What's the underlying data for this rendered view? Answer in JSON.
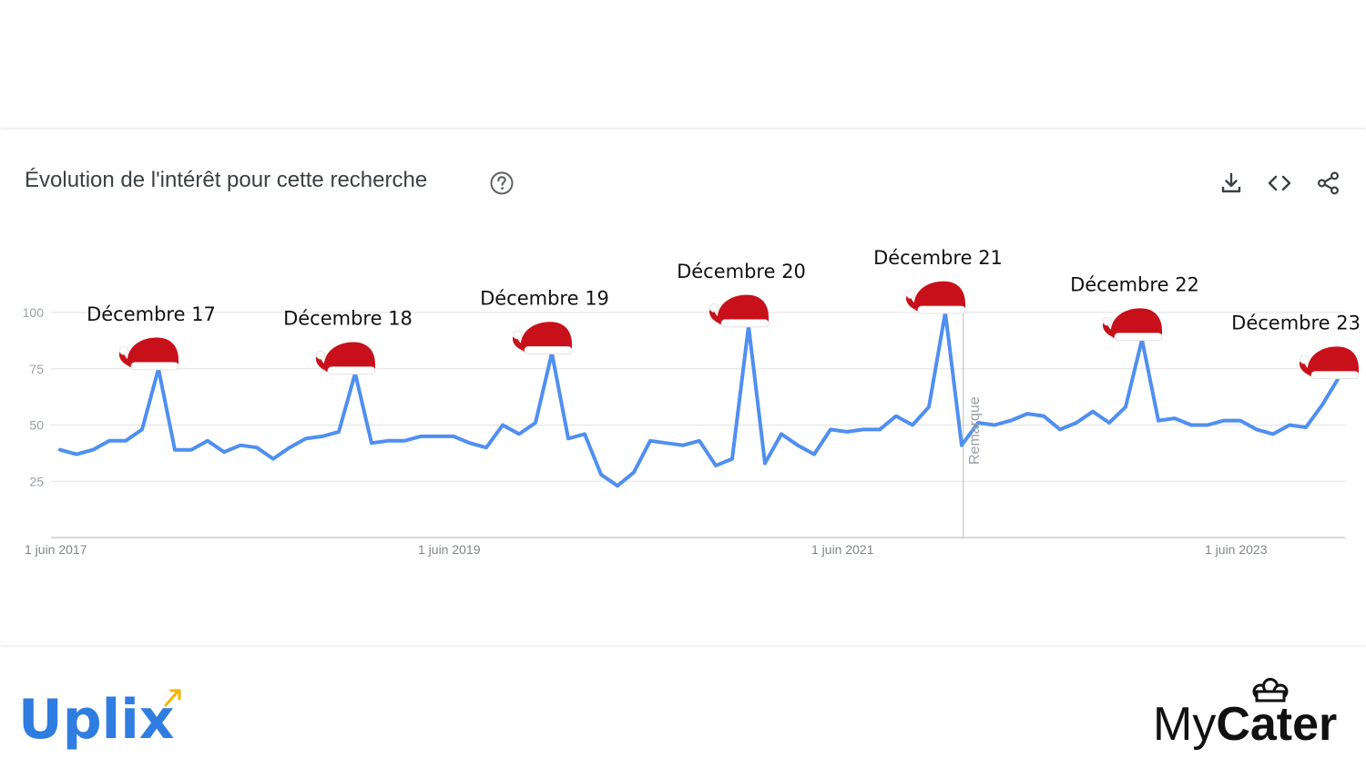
{
  "header": {
    "title": "Évolution de l'intérêt pour cette recherche",
    "icons": [
      "help-icon",
      "download-icon",
      "embed-icon",
      "share-icon"
    ]
  },
  "logos": {
    "uplix": "Uplix",
    "mycater_my": "My",
    "mycater_cater": "Cater"
  },
  "colors": {
    "line": "#4f8ff0",
    "grid": "#e2e2e2",
    "hat_red": "#c8101a",
    "hat_white": "#ffffff"
  },
  "chart_data": {
    "type": "line",
    "y_ticks": [
      25,
      50,
      75,
      100
    ],
    "ylim": [
      0,
      100
    ],
    "x_ticks": [
      {
        "label": "1 juin 2017",
        "index": 0
      },
      {
        "label": "1 juin 2019",
        "index": 24
      },
      {
        "label": "1 juin 2021",
        "index": 48
      },
      {
        "label": "1 juin 2023",
        "index": 72
      }
    ],
    "series": [
      {
        "values": [
          39,
          37,
          39,
          43,
          43,
          48,
          75,
          39,
          39,
          43,
          38,
          41,
          40,
          35,
          40,
          44,
          45,
          47,
          73,
          42,
          43,
          43,
          45,
          45,
          45,
          42,
          40,
          50,
          46,
          51,
          82,
          44,
          46,
          28,
          23,
          29,
          43,
          42,
          41,
          43,
          32,
          35,
          94,
          33,
          46,
          41,
          37,
          48,
          47,
          48,
          48,
          54,
          50,
          58,
          100,
          41,
          51,
          50,
          52,
          55,
          54,
          48,
          51,
          56,
          51,
          58,
          88,
          52,
          53,
          50,
          50,
          52,
          52,
          48,
          46,
          50,
          49,
          59,
          71
        ]
      }
    ],
    "annotations": [
      {
        "label": "Décembre 17",
        "index": 6
      },
      {
        "label": "Décembre 18",
        "index": 18
      },
      {
        "label": "Décembre 19",
        "index": 30
      },
      {
        "label": "Décembre 20",
        "index": 42
      },
      {
        "label": "Décembre 21",
        "index": 54
      },
      {
        "label": "Décembre 22",
        "index": 66
      },
      {
        "label": "Décembre 23",
        "index": 78
      }
    ],
    "note": {
      "label": "Remarque",
      "index": 55.1
    }
  }
}
